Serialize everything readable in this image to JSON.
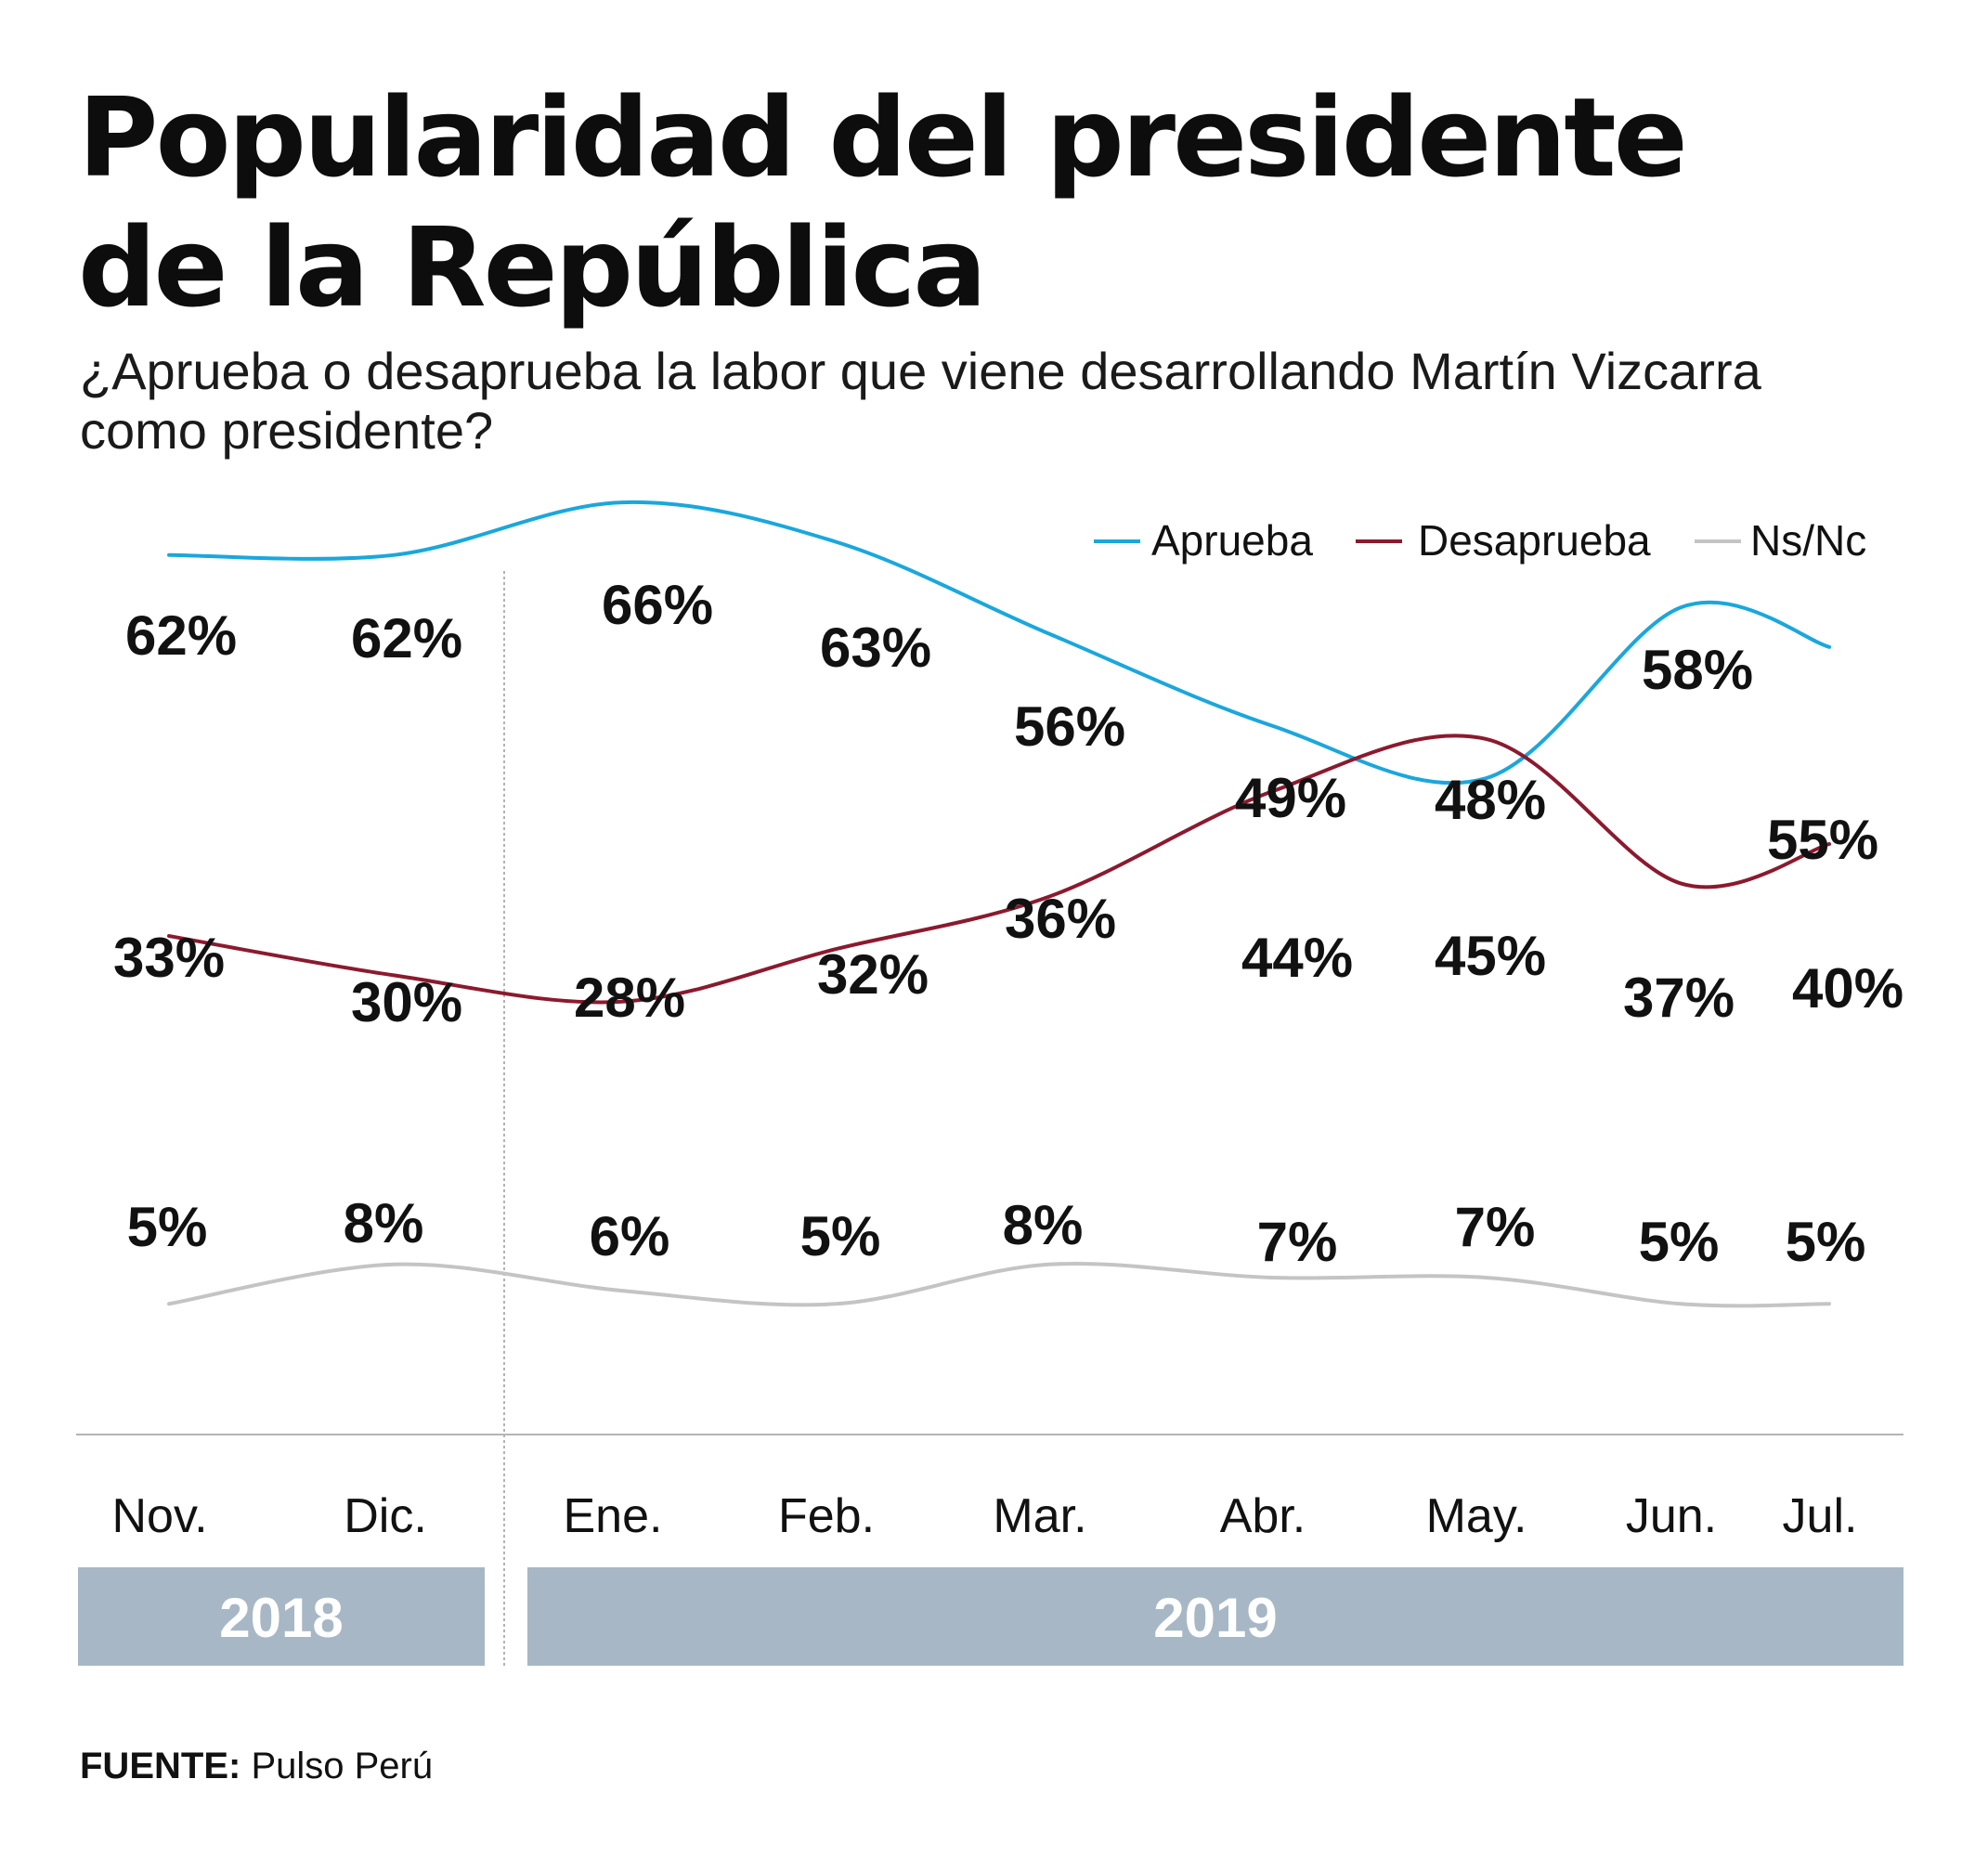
{
  "title_line1": "Popularidad del presidente",
  "title_line2": "de la República",
  "subtitle": "¿Aprueba o desaprueba la labor que viene desarrollando Martín Vizcarra como presidente?",
  "source_label": "FUENTE:",
  "source_value": "Pulso Perú",
  "chart_data": {
    "type": "line",
    "categories": [
      "Nov.",
      "Dic.",
      "Ene.",
      "Feb.",
      "Mar.",
      "Abr.",
      "May.",
      "Jun.",
      "Jul."
    ],
    "years": [
      {
        "label": "2018",
        "start": 0,
        "end": 1
      },
      {
        "label": "2019",
        "start": 2,
        "end": 8
      }
    ],
    "series": [
      {
        "name": "Aprueba",
        "color": "#1aa7dc",
        "values": [
          62,
          62,
          66,
          63,
          56,
          49,
          45,
          58,
          55
        ],
        "labels": [
          "62%",
          "62%",
          "66%",
          "63%",
          "56%",
          "49%",
          "45%",
          "58%",
          "55%"
        ]
      },
      {
        "name": "Desaprueba",
        "color": "#8b1a2e",
        "values": [
          33,
          30,
          28,
          32,
          36,
          44,
          48,
          37,
          40
        ],
        "labels": [
          "33%",
          "30%",
          "28%",
          "32%",
          "36%",
          "44%",
          "48%",
          "37%",
          "40%"
        ]
      },
      {
        "name": "Ns/Nc",
        "color": "#c4c4c4",
        "values": [
          5,
          8,
          6,
          5,
          8,
          7,
          7,
          5,
          5
        ],
        "labels": [
          "5%",
          "8%",
          "6%",
          "5%",
          "8%",
          "7%",
          "7%",
          "5%",
          "5%"
        ]
      }
    ],
    "legend": [
      "Aprueba",
      "Desaprueba",
      "Ns/Nc"
    ],
    "legend_position": "top-right",
    "ylim": [
      0,
      70
    ],
    "year_bar_color": "#a7b7c5"
  }
}
